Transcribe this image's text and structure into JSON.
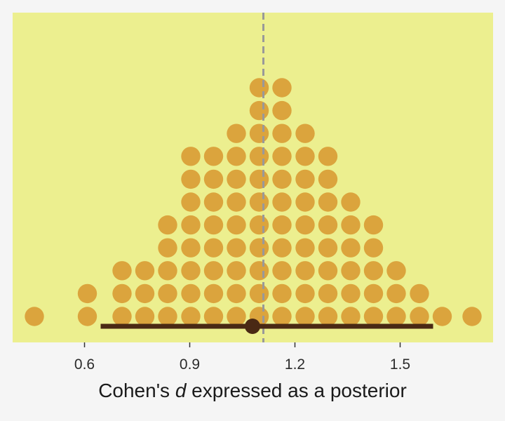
{
  "chart_data": {
    "type": "dotplot",
    "xlabel_parts": {
      "before": "Cohen's ",
      "italic": "d",
      "after": " expressed as a posterior"
    },
    "xlim": [
      0.395,
      1.765
    ],
    "ticks": [
      0.6,
      0.9,
      1.2,
      1.5
    ],
    "tick_labels": [
      "0.6",
      "0.9",
      "1.2",
      "1.5"
    ],
    "bin_width": 0.0652,
    "dot_columns": [
      {
        "x": 0.457,
        "count": 1
      },
      {
        "x": 0.608,
        "count": 2
      },
      {
        "x": 0.707,
        "count": 3
      },
      {
        "x": 0.772,
        "count": 3
      },
      {
        "x": 0.837,
        "count": 5
      },
      {
        "x": 0.903,
        "count": 8
      },
      {
        "x": 0.968,
        "count": 8
      },
      {
        "x": 1.033,
        "count": 9
      },
      {
        "x": 1.098,
        "count": 11
      },
      {
        "x": 1.163,
        "count": 11
      },
      {
        "x": 1.229,
        "count": 9
      },
      {
        "x": 1.294,
        "count": 8
      },
      {
        "x": 1.359,
        "count": 6
      },
      {
        "x": 1.424,
        "count": 5
      },
      {
        "x": 1.489,
        "count": 3
      },
      {
        "x": 1.555,
        "count": 2
      },
      {
        "x": 1.62,
        "count": 1
      },
      {
        "x": 1.705,
        "count": 1
      }
    ],
    "point_estimate": 1.079,
    "interval": [
      0.646,
      1.594
    ],
    "reference_line": 1.11,
    "grid": false,
    "colors": {
      "panel": "#ecef8f",
      "background": "#f5f5f5",
      "dots": "#dba43d",
      "interval": "#4a2914",
      "reference_line": "#999999"
    }
  }
}
